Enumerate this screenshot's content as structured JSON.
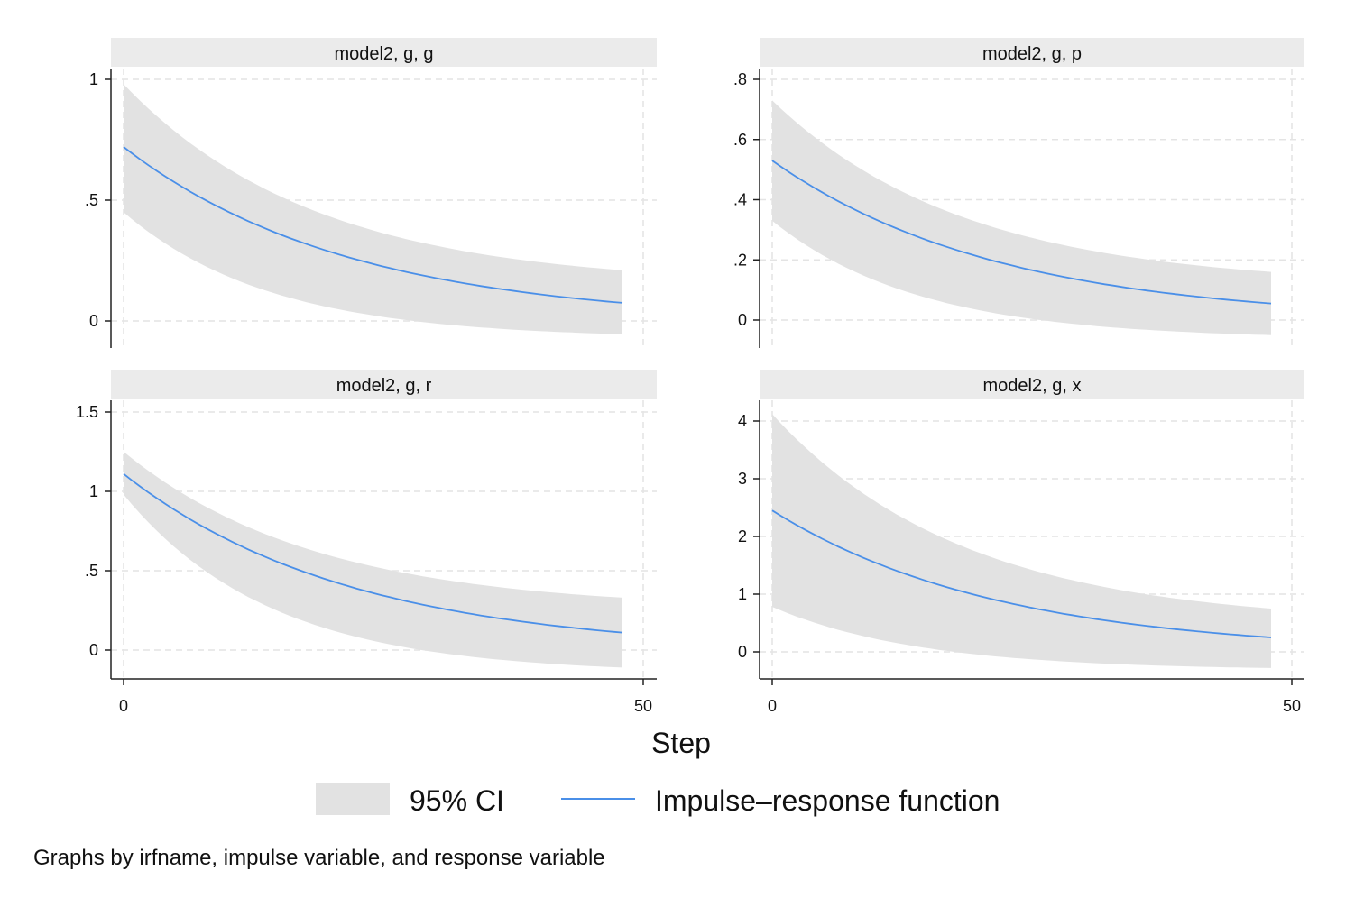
{
  "chart_data": {
    "type": "line",
    "xlabel": "Step",
    "note": "Graphs by irfname, impulse variable, and response variable",
    "legend": {
      "position": "bottom",
      "entries": [
        {
          "label": "95% CI",
          "kind": "band"
        },
        {
          "label": "Impulse–response function",
          "kind": "line"
        }
      ]
    },
    "colors": {
      "ci": "#e2e2e2",
      "irf": "#4a8fe8",
      "strip": "#ebebeb",
      "grid": "#e4e4e4",
      "axis": "#222222"
    },
    "xlim": [
      0,
      50
    ],
    "xticks": [
      0,
      50
    ],
    "x": [
      0,
      48
    ],
    "panels": [
      {
        "title": "model2, g, g",
        "ylim": [
          -0.05,
          1.03
        ],
        "yticks": [
          {
            "v": 0,
            "l": "0"
          },
          {
            "v": 0.5,
            "l": ".5"
          },
          {
            "v": 1,
            "l": "1"
          }
        ],
        "irf_start": 0.72,
        "irf_end": 0.075,
        "lower_start": 0.45,
        "lower_end": -0.055,
        "upper_start": 0.98,
        "upper_end": 0.21
      },
      {
        "title": "model2, g, p",
        "ylim": [
          -0.09,
          0.84
        ],
        "yticks": [
          {
            "v": 0,
            "l": "0"
          },
          {
            "v": 0.2,
            "l": ".2"
          },
          {
            "v": 0.4,
            "l": ".4"
          },
          {
            "v": 0.6,
            "l": ".6"
          },
          {
            "v": 0.8,
            "l": ".8"
          }
        ],
        "irf_start": 0.53,
        "irf_end": 0.055,
        "lower_start": 0.33,
        "lower_end": -0.05,
        "upper_start": 0.73,
        "upper_end": 0.16
      },
      {
        "title": "model2, g, r",
        "ylim": [
          -0.18,
          1.55
        ],
        "yticks": [
          {
            "v": 0,
            "l": "0"
          },
          {
            "v": 0.5,
            "l": ".5"
          },
          {
            "v": 1,
            "l": "1"
          },
          {
            "v": 1.5,
            "l": "1.5"
          }
        ],
        "irf_start": 1.11,
        "irf_end": 0.11,
        "lower_start": 0.98,
        "lower_end": -0.11,
        "upper_start": 1.25,
        "upper_end": 0.33
      },
      {
        "title": "model2, g, x",
        "ylim": [
          -0.45,
          4.35
        ],
        "yticks": [
          {
            "v": 0,
            "l": "0"
          },
          {
            "v": 1,
            "l": "1"
          },
          {
            "v": 2,
            "l": "2"
          },
          {
            "v": 3,
            "l": "3"
          },
          {
            "v": 4,
            "l": "4"
          }
        ],
        "irf_start": 2.45,
        "irf_end": 0.25,
        "lower_start": 0.78,
        "lower_end": -0.28,
        "upper_start": 4.12,
        "upper_end": 0.75
      }
    ]
  }
}
